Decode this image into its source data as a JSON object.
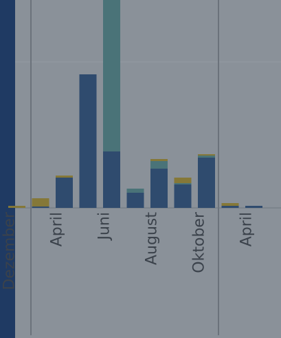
{
  "chart_data": {
    "type": "bar",
    "stacked": true,
    "categories": [
      "Dezember",
      null,
      "April",
      null,
      "Juni",
      null,
      "August",
      null,
      "Oktober",
      null,
      "April"
    ],
    "series": [
      {
        "color": "#2f4b6e",
        "values": [
          0,
          2,
          44,
          194,
          82,
          22,
          57,
          34,
          73,
          3,
          3
        ]
      },
      {
        "color": "#4a7378",
        "values": [
          0,
          0,
          0,
          0,
          220,
          6,
          11,
          2,
          3,
          0,
          0
        ]
      },
      {
        "color": "#857838",
        "values": [
          3,
          12,
          3,
          0,
          0,
          0,
          3,
          8,
          2,
          4,
          0
        ]
      }
    ],
    "ylim": [
      0,
      302
    ]
  }
}
